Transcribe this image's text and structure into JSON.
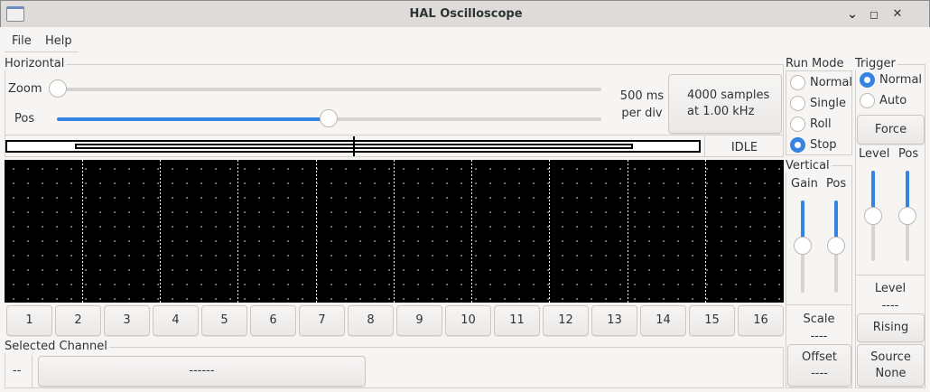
{
  "window": {
    "title": "HAL Oscilloscope",
    "minimize": "⌄",
    "maximize": "◻",
    "close": "✕"
  },
  "menu": {
    "file": "File",
    "help": "Help"
  },
  "horizontal": {
    "legend": "Horizontal",
    "zoom_label": "Zoom",
    "pos_label": "Pos",
    "zoom_value": 0,
    "pos_value": 0.5,
    "timebase_line1": "500 ms",
    "timebase_line2": "per div",
    "samples_line1": "4000 samples",
    "samples_line2": "at 1.00 kHz",
    "status": "IDLE"
  },
  "channels": [
    "1",
    "2",
    "3",
    "4",
    "5",
    "6",
    "7",
    "8",
    "9",
    "10",
    "11",
    "12",
    "13",
    "14",
    "15",
    "16"
  ],
  "selected_channel": {
    "legend": "Selected Channel",
    "number": "--",
    "name": "------"
  },
  "run_mode": {
    "legend": "Run Mode",
    "options": [
      "Normal",
      "Single",
      "Roll",
      "Stop"
    ],
    "selected": "Stop"
  },
  "trigger": {
    "legend": "Trigger",
    "options": [
      "Normal",
      "Auto"
    ],
    "selected": "Normal",
    "force": "Force",
    "level_label": "Level",
    "pos_label": "Pos",
    "level_value": 0.5,
    "pos_value": 0.5,
    "level_title": "Level",
    "level_readout": "----",
    "edge": "Rising",
    "source_line1": "Source",
    "source_line2": "None"
  },
  "vertical": {
    "legend": "Vertical",
    "gain_label": "Gain",
    "pos_label": "Pos",
    "gain_value": 0.5,
    "pos_value": 0.5,
    "scale_title": "Scale",
    "scale_readout": "----",
    "offset_line1": "Offset",
    "offset_line2": "----"
  },
  "colors": {
    "accent": "#3584e4",
    "scope_bg": "#000000"
  }
}
